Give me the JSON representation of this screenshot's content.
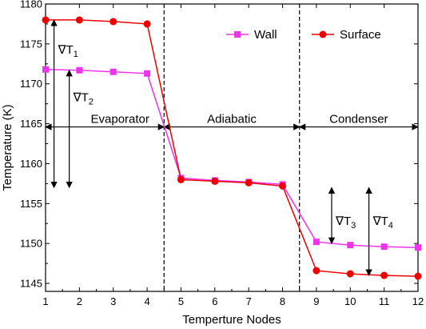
{
  "chart_data": {
    "type": "line",
    "xlabel": "Temperture Nodes",
    "ylabel": "Temperature (K)",
    "xlim": [
      1,
      12
    ],
    "ylim": [
      1144,
      1180
    ],
    "xticks": [
      1,
      2,
      3,
      4,
      5,
      6,
      7,
      8,
      9,
      10,
      11,
      12
    ],
    "yticks": [
      1145,
      1150,
      1155,
      1160,
      1165,
      1170,
      1175,
      1180
    ],
    "x": [
      1,
      2,
      3,
      4,
      5,
      6,
      7,
      8,
      9,
      10,
      11,
      12
    ],
    "series": [
      {
        "name": "Wall",
        "color": "#ee33ee",
        "marker": "square",
        "values": [
          1171.8,
          1171.7,
          1171.5,
          1171.3,
          1158.2,
          1157.9,
          1157.7,
          1157.4,
          1150.2,
          1149.8,
          1149.6,
          1149.5
        ]
      },
      {
        "name": "Surface",
        "color": "#ee0000",
        "marker": "circle",
        "values": [
          1178.0,
          1178.0,
          1177.8,
          1177.5,
          1158.0,
          1157.8,
          1157.6,
          1157.2,
          1146.6,
          1146.2,
          1146.0,
          1145.9
        ]
      }
    ],
    "legend_position": "top-right",
    "dividers_x": [
      4.5,
      8.5
    ],
    "regions": [
      {
        "label": "Evaporator",
        "x": [
          1,
          4.5
        ]
      },
      {
        "label": "Adiabatic",
        "x": [
          4.5,
          8.5
        ]
      },
      {
        "label": "Condenser",
        "x": [
          8.5,
          12
        ]
      }
    ],
    "region_arrow_y": 1164.6,
    "gradients": [
      {
        "symbol": "∇T",
        "sub": "1",
        "x": 1.25,
        "from": 1178.0,
        "to": 1157.0
      },
      {
        "symbol": "∇T",
        "sub": "2",
        "x": 1.7,
        "from": 1171.7,
        "to": 1157.0
      },
      {
        "symbol": "∇T",
        "sub": "3",
        "x": 9.45,
        "from": 1157.0,
        "to": 1150.0
      },
      {
        "symbol": "∇T",
        "sub": "4",
        "x": 10.55,
        "from": 1157.0,
        "to": 1146.0
      }
    ]
  }
}
